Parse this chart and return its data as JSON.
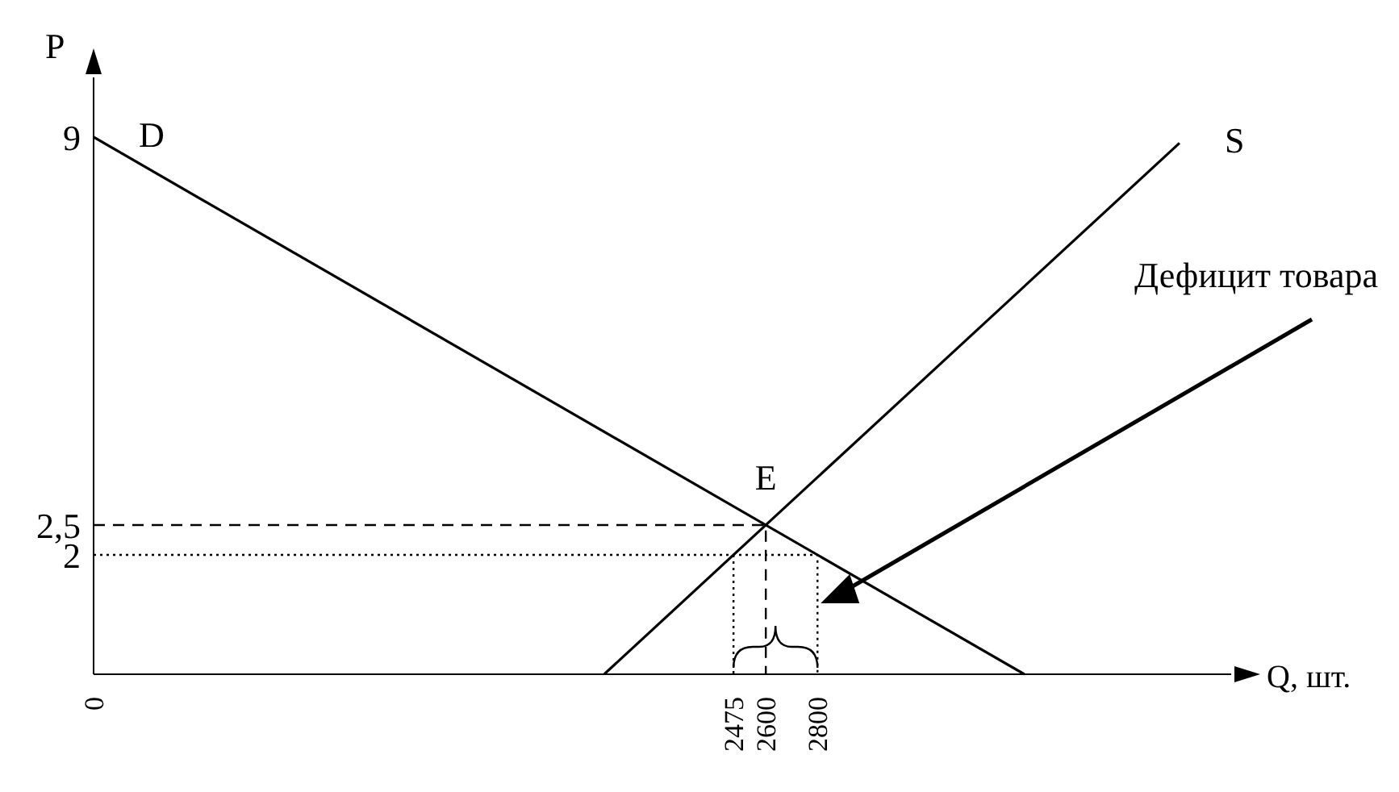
{
  "chart_data": {
    "type": "line",
    "xlabel": "Q, шт.",
    "ylabel": "P",
    "xlim": [
      0,
      4400
    ],
    "ylim": [
      0,
      10
    ],
    "xticks": [
      0,
      2475,
      2600,
      2800
    ],
    "yticks": [
      2,
      {
        "value": 2.5,
        "label": "2,5"
      },
      9
    ],
    "grid": false,
    "legend": false,
    "marker": "none",
    "series": [
      {
        "name": "D",
        "color": "#000000",
        "x": [
          0,
          3600
        ],
        "values": [
          9,
          0
        ]
      },
      {
        "name": "S",
        "color": "#000000",
        "x": [
          1975,
          4200
        ],
        "values": [
          0,
          8.9
        ]
      },
      {
        "color": "#000000",
        "line_style": "dashed",
        "x": [
          0,
          2600,
          2600
        ],
        "values": [
          2.5,
          2.5,
          0
        ]
      },
      {
        "color": "#000000",
        "line_style": "dotted",
        "x": [
          0,
          2800,
          2800
        ],
        "values": [
          2,
          2,
          0
        ]
      },
      {
        "color": "#000000",
        "line_style": "dotted",
        "x": [
          2475,
          2475
        ],
        "values": [
          2,
          0
        ]
      }
    ],
    "annotations": [
      {
        "text": "E",
        "x": 2600,
        "y": 2.5
      },
      "Дефицит товара"
    ]
  }
}
